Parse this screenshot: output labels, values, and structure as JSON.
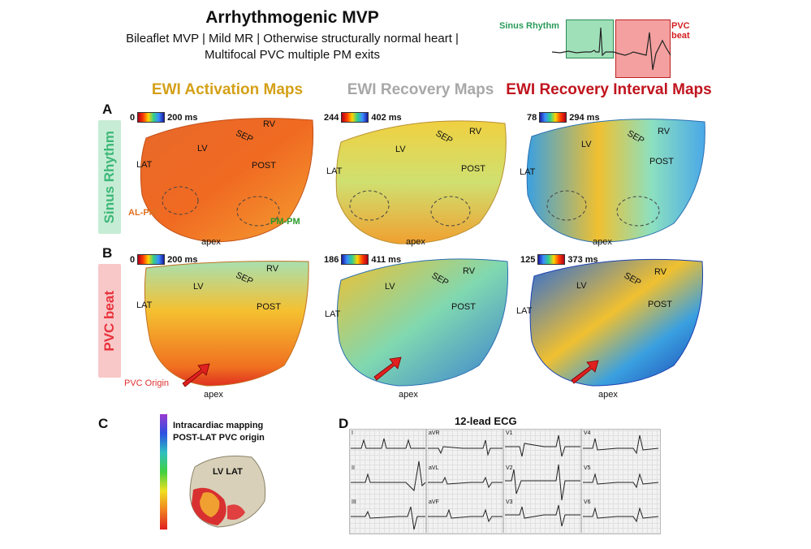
{
  "header": {
    "title": "Arrhythmogenic MVP",
    "subtitle_line1": "Bileaflet MVP | Mild MR | Otherwise structurally normal heart |",
    "subtitle_line2": "Multifocal PVC multiple PM exits"
  },
  "inset": {
    "sinus_label": "Sinus Rhythm",
    "pvc_label": "PVC beat"
  },
  "columns": {
    "activation": "EWI Activation Maps",
    "recovery": "EWI Recovery Maps",
    "interval": "EWI Recovery Interval Maps"
  },
  "rows": {
    "A": {
      "letter": "A",
      "label": "Sinus Rhythm"
    },
    "B": {
      "letter": "B",
      "label": "PVC beat"
    }
  },
  "scales": {
    "A_act": {
      "min": "0",
      "max": "200 ms"
    },
    "A_rec": {
      "min": "244",
      "max": "402 ms"
    },
    "A_int": {
      "min": "78",
      "max": "294 ms"
    },
    "B_act": {
      "min": "0",
      "max": "200 ms"
    },
    "B_rec": {
      "min": "186",
      "max": "411 ms"
    },
    "B_int": {
      "min": "125",
      "max": "373 ms"
    }
  },
  "heart_labels": {
    "lv": "LV",
    "rv": "RV",
    "sep": "SEP",
    "post": "POST",
    "lat": "LAT",
    "apex": "apex",
    "al_pm": "AL-PM",
    "pm_pm": "PM-PM",
    "pvc_origin": "PVC Origin"
  },
  "panel_c": {
    "letter": "C",
    "title_line1": "Intracardiac mapping",
    "title_line2": "POST-LAT PVC origin",
    "region": "LV LAT"
  },
  "panel_d": {
    "letter": "D",
    "title": "12-lead ECG",
    "leads": [
      "I",
      "aVR",
      "V1",
      "V4",
      "II",
      "aVL",
      "V2",
      "V5",
      "III",
      "aVF",
      "V3",
      "V6"
    ]
  },
  "colors": {
    "sinus_green": "#3cb878",
    "pvc_red": "#e8323c",
    "activation_head": "#d4a017",
    "recovery_head": "#a8a8a8",
    "interval_head": "#c0141e"
  }
}
